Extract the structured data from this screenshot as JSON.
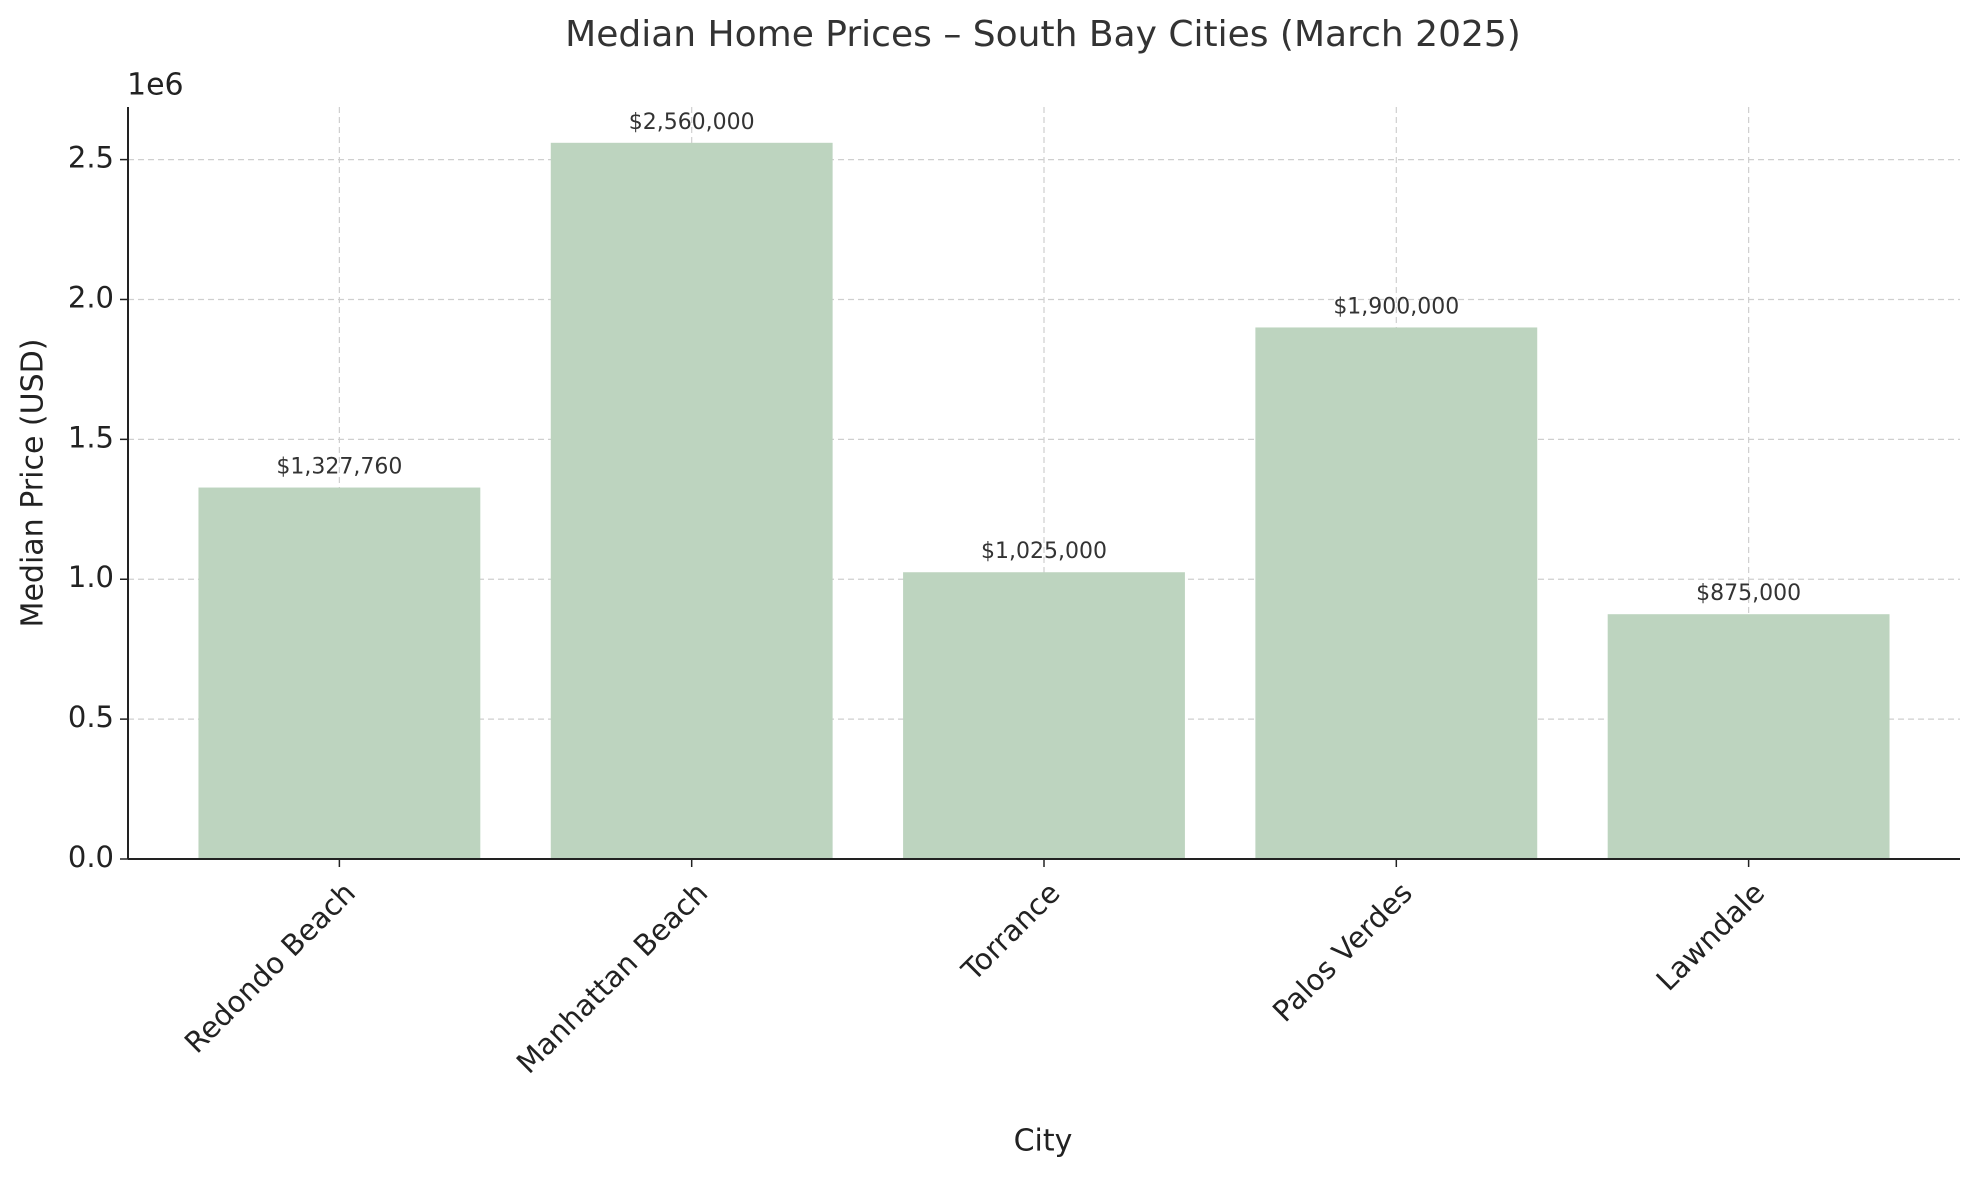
{
  "chart_data": {
    "type": "bar",
    "title": "Median Home Prices – South Bay Cities (March 2025)",
    "x_label": "City",
    "y_label": "Median Price (USD)",
    "y_offset_label": "1e6",
    "categories": [
      "Redondo Beach",
      "Manhattan Beach",
      "Torrance",
      "Palos Verdes",
      "Lawndale"
    ],
    "values": [
      1327760,
      2560000,
      1025000,
      1900000,
      875000
    ],
    "value_labels": [
      "$1,327,760",
      "$2,560,000",
      "$1,025,000",
      "$1,900,000",
      "$875,000"
    ],
    "color": "#bdd4bf",
    "ylim": [
      0,
      2688000
    ],
    "yticks": [
      {
        "value": 0,
        "label": "0.0"
      },
      {
        "value": 500000,
        "label": "0.5"
      },
      {
        "value": 1000000,
        "label": "1.0"
      },
      {
        "value": 1500000,
        "label": "1.5"
      },
      {
        "value": 2000000,
        "label": "2.0"
      },
      {
        "value": 2500000,
        "label": "2.5"
      }
    ],
    "grid": true
  }
}
